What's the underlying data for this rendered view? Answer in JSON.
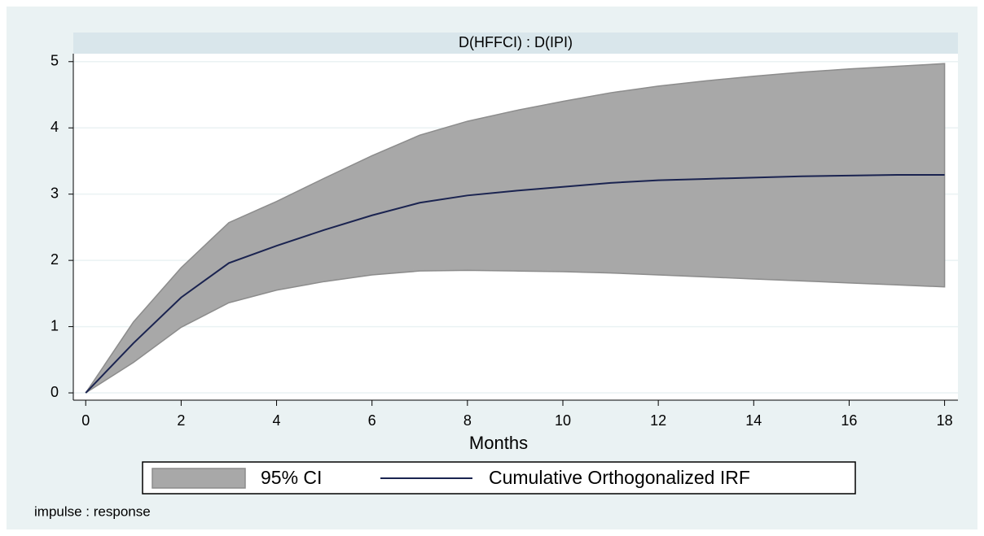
{
  "chart_data": {
    "type": "line",
    "subtitle": "D(HFFCI) : D(IPI)",
    "x_label": "Months",
    "note": "impulse : response",
    "x": [
      0,
      1,
      2,
      3,
      4,
      5,
      6,
      7,
      8,
      9,
      10,
      11,
      12,
      13,
      14,
      15,
      16,
      17,
      18
    ],
    "band": {
      "name": "95% CI",
      "color": "#a8a8a8",
      "upper": [
        0,
        1.07,
        1.89,
        2.57,
        2.89,
        3.24,
        3.58,
        3.89,
        4.1,
        4.26,
        4.4,
        4.53,
        4.63,
        4.71,
        4.78,
        4.84,
        4.89,
        4.93,
        4.97
      ],
      "lower": [
        0,
        0.46,
        0.99,
        1.36,
        1.55,
        1.68,
        1.78,
        1.84,
        1.85,
        1.84,
        1.83,
        1.81,
        1.78,
        1.75,
        1.72,
        1.69,
        1.66,
        1.63,
        1.6
      ]
    },
    "series": [
      {
        "name": "Cumulative Orthogonalized IRF",
        "color": "#1a2350",
        "values": [
          0,
          0.75,
          1.44,
          1.96,
          2.22,
          2.46,
          2.68,
          2.87,
          2.98,
          3.05,
          3.11,
          3.17,
          3.21,
          3.23,
          3.25,
          3.27,
          3.28,
          3.29,
          3.29
        ]
      }
    ],
    "xlim": [
      -0.26,
      18.28
    ],
    "xticks": [
      0,
      2,
      4,
      6,
      8,
      10,
      12,
      14,
      16,
      18
    ],
    "ylim": [
      -0.11,
      5.12
    ],
    "yticks": [
      0,
      1,
      2,
      3,
      4,
      5
    ],
    "grid": true
  }
}
